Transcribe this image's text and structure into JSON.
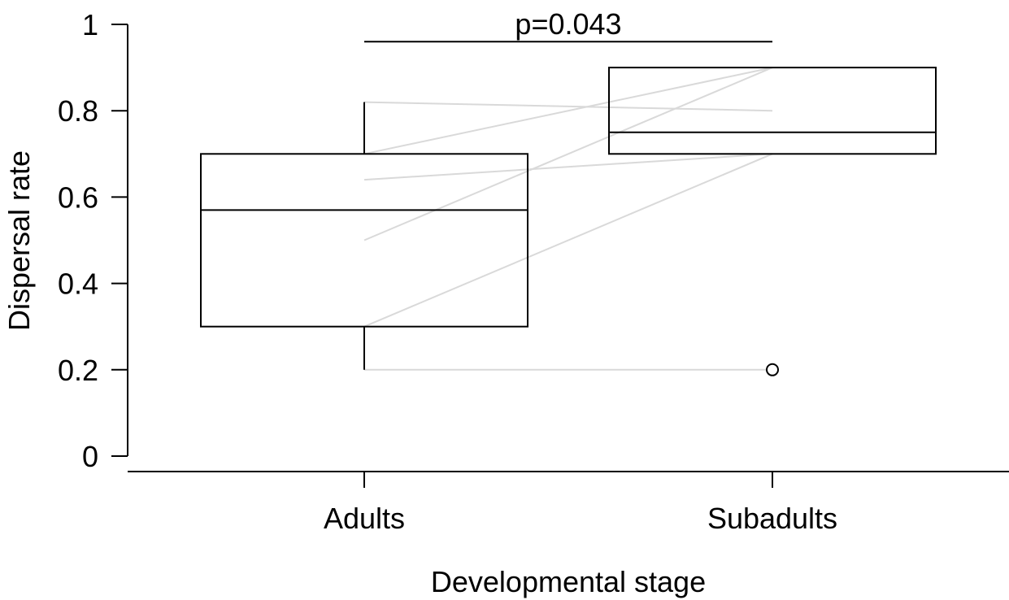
{
  "chart_data": {
    "type": "box",
    "xlabel": "Developmental stage",
    "ylabel": "Dispersal rate",
    "ylim": [
      0,
      1
    ],
    "yticks": [
      0,
      0.2,
      0.4,
      0.6,
      0.8,
      1
    ],
    "ytick_labels": [
      "0",
      "0.2",
      "0.4",
      "0.6",
      "0.8",
      "1"
    ],
    "categories": [
      "Adults",
      "Subadults"
    ],
    "boxes": [
      {
        "category": "Adults",
        "whisker_low": 0.2,
        "q1": 0.3,
        "median": 0.57,
        "q3": 0.7,
        "whisker_high": 0.82,
        "outliers": []
      },
      {
        "category": "Subadults",
        "whisker_low": 0.7,
        "q1": 0.7,
        "median": 0.75,
        "q3": 0.9,
        "whisker_high": 0.9,
        "outliers": [
          0.2
        ]
      }
    ],
    "paired_lines": [
      {
        "Adults": 0.82,
        "Subadults": 0.8
      },
      {
        "Adults": 0.7,
        "Subadults": 0.9
      },
      {
        "Adults": 0.64,
        "Subadults": 0.7
      },
      {
        "Adults": 0.5,
        "Subadults": 0.9
      },
      {
        "Adults": 0.3,
        "Subadults": 0.7
      },
      {
        "Adults": 0.2,
        "Subadults": 0.2
      }
    ],
    "annotation": {
      "text": "p=0.043",
      "y": 0.96
    },
    "grid": false,
    "legend": "none"
  }
}
